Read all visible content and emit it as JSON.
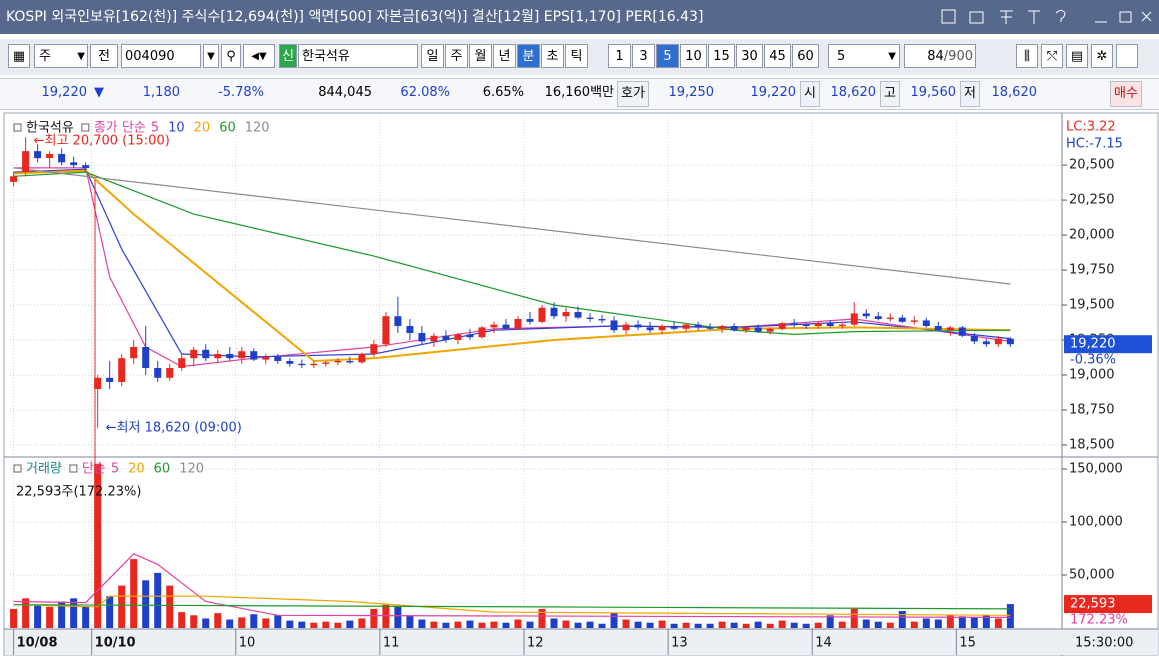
{
  "title_bar": {
    "text": "KOSPI 외국인보유[162(천)] 주식수[12,694(천)] 액면[500] 자본금[63(억)] 결산[12월] EPS[1,170] PER[16.43]"
  },
  "toolbar": {
    "type_select": "주",
    "prev": "전",
    "code": "004090",
    "stock_badge": "신",
    "stock_name": "한국석유",
    "periods": [
      "일",
      "주",
      "월",
      "년",
      "분",
      "초",
      "틱"
    ],
    "active_period_index": 4,
    "minutes": [
      "1",
      "3",
      "5",
      "10",
      "15",
      "30",
      "45",
      "60"
    ],
    "active_minute_index": 2,
    "interval": "5",
    "count": "84",
    "count_max": "/900"
  },
  "quote": {
    "price": "19,220",
    "arrow": "▼",
    "change": "1,180",
    "rate": "-5.78%",
    "volume": "844,045",
    "volume_ratio": "62.08%",
    "turnover": "6.65%",
    "amount": "16,160백만",
    "ask_label": "호가",
    "ask": "19,250",
    "bid": "19,220",
    "open_label": "시",
    "open": "18,620",
    "high_label": "고",
    "high": "19,560",
    "low_label": "저",
    "low": "18,620",
    "order_button": "매수"
  },
  "chart_data": [
    {
      "type": "candlestick",
      "name": "한국석유",
      "ma_label": "종가 단순",
      "up_color": "#e8281e",
      "down_color": "#1e40c8",
      "open": [
        20380,
        20450,
        20600,
        20550,
        20580,
        20520,
        20500,
        18900,
        18980,
        18950,
        19120,
        19200,
        19050,
        18980,
        19050,
        19120,
        19180,
        19120,
        19150,
        19120,
        19170,
        19110,
        19130,
        19100,
        19080,
        19070,
        19080,
        19090,
        19100,
        19090,
        19150,
        19220,
        19420,
        19350,
        19300,
        19240,
        19280,
        19250,
        19290,
        19270,
        19340,
        19360,
        19330,
        19400,
        19380,
        19480,
        19420,
        19450,
        19410,
        19400,
        19390,
        19320,
        19360,
        19340,
        19320,
        19350,
        19330,
        19360,
        19340,
        19330,
        19350,
        19320,
        19340,
        19310,
        19330,
        19370,
        19360,
        19350,
        19370,
        19350,
        19360,
        19440,
        19420,
        19400,
        19410,
        19380,
        19390,
        19350,
        19320,
        19340,
        19280,
        19240,
        19220,
        19260
      ],
      "high": [
        20450,
        20700,
        20650,
        20600,
        20620,
        20560,
        20520,
        19000,
        19100,
        19150,
        19250,
        19350,
        19100,
        19080,
        19150,
        19200,
        19220,
        19180,
        19200,
        19200,
        19190,
        19150,
        19150,
        19120,
        19110,
        19100,
        19100,
        19120,
        19130,
        19160,
        19250,
        19450,
        19560,
        19400,
        19350,
        19300,
        19320,
        19300,
        19330,
        19350,
        19380,
        19400,
        19420,
        19450,
        19500,
        19520,
        19480,
        19490,
        19440,
        19430,
        19420,
        19380,
        19390,
        19380,
        19360,
        19380,
        19370,
        19380,
        19370,
        19360,
        19370,
        19350,
        19360,
        19340,
        19380,
        19400,
        19370,
        19380,
        19390,
        19380,
        19520,
        19470,
        19450,
        19440,
        19430,
        19420,
        19410,
        19380,
        19350,
        19350,
        19300,
        19260,
        19280,
        19270
      ],
      "low": [
        20350,
        20420,
        20520,
        20480,
        20500,
        20480,
        20450,
        18620,
        18900,
        18920,
        19080,
        19000,
        18950,
        18960,
        19030,
        19060,
        19100,
        19090,
        19100,
        19080,
        19100,
        19080,
        19080,
        19060,
        19050,
        19050,
        19060,
        19070,
        19080,
        19080,
        19130,
        19200,
        19300,
        19250,
        19220,
        19200,
        19230,
        19220,
        19250,
        19260,
        19300,
        19320,
        19320,
        19360,
        19370,
        19400,
        19380,
        19400,
        19380,
        19370,
        19300,
        19290,
        19320,
        19300,
        19290,
        19320,
        19310,
        19320,
        19320,
        19300,
        19310,
        19300,
        19300,
        19290,
        19320,
        19340,
        19330,
        19330,
        19340,
        19330,
        19350,
        19400,
        19390,
        19380,
        19370,
        19360,
        19340,
        19310,
        19280,
        19270,
        19220,
        19200,
        19200,
        19200
      ],
      "close": [
        20420,
        20600,
        20550,
        20580,
        20520,
        20500,
        20480,
        18980,
        18950,
        19120,
        19200,
        19050,
        18980,
        19050,
        19120,
        19180,
        19120,
        19150,
        19120,
        19170,
        19110,
        19130,
        19100,
        19080,
        19070,
        19080,
        19090,
        19100,
        19090,
        19150,
        19220,
        19420,
        19350,
        19300,
        19240,
        19280,
        19250,
        19290,
        19270,
        19340,
        19360,
        19330,
        19400,
        19380,
        19480,
        19420,
        19450,
        19410,
        19400,
        19390,
        19320,
        19360,
        19340,
        19320,
        19350,
        19330,
        19360,
        19340,
        19330,
        19350,
        19320,
        19340,
        19310,
        19330,
        19370,
        19360,
        19350,
        19370,
        19350,
        19360,
        19440,
        19420,
        19400,
        19410,
        19380,
        19390,
        19350,
        19320,
        19340,
        19280,
        19240,
        19220,
        19260,
        19220
      ],
      "moving_averages": [
        {
          "name": "5",
          "color": "#e040a0",
          "x": [
            0,
            6,
            8,
            11,
            14,
            20,
            30,
            40,
            50,
            60,
            70,
            83
          ],
          "values": [
            20480,
            20480,
            19700,
            19200,
            19060,
            19120,
            19200,
            19330,
            19350,
            19340,
            19400,
            19240
          ]
        },
        {
          "name": "10",
          "color": "#2b3fd6",
          "x": [
            0,
            6,
            9,
            14,
            20,
            30,
            40,
            50,
            60,
            70,
            83
          ],
          "values": [
            20450,
            20470,
            19900,
            19150,
            19130,
            19150,
            19320,
            19350,
            19340,
            19380,
            19260
          ]
        },
        {
          "name": "20",
          "color": "#f0a500",
          "x": [
            0,
            6,
            10,
            25,
            30,
            45,
            60,
            70,
            83
          ],
          "values": [
            20440,
            20460,
            20150,
            19100,
            19120,
            19250,
            19330,
            19340,
            19320
          ]
        },
        {
          "name": "60",
          "color": "#1a9a2a",
          "x": [
            0,
            6,
            15,
            30,
            45,
            60,
            65,
            70,
            83
          ],
          "values": [
            20420,
            20450,
            20150,
            19850,
            19500,
            19320,
            19290,
            19310,
            19320
          ]
        },
        {
          "name": "120",
          "color": "#8c8c8c",
          "x": [
            0,
            83
          ],
          "values": [
            20480,
            19650
          ]
        }
      ],
      "xlim": [
        -0.3,
        87.3
      ],
      "ylim": [
        18428,
        20844
      ],
      "yticks": [
        {
          "value": 18500,
          "label": "18,500"
        },
        {
          "value": 18750,
          "label": "18,750"
        },
        {
          "value": 19000,
          "label": "19,000"
        },
        {
          "value": 19250,
          "label": "19,250"
        },
        {
          "value": 19500,
          "label": "19,500"
        },
        {
          "value": 19750,
          "label": "19,750"
        },
        {
          "value": 20000,
          "label": "20,000"
        },
        {
          "value": 20250,
          "label": "20,250"
        },
        {
          "value": 20500,
          "label": "20,500"
        }
      ],
      "grid": true,
      "annotations": [
        {
          "text": "←최고 20,700 (15:00)",
          "value": 20700,
          "color": "#e8281e"
        },
        {
          "text": "←최저 18,620 (09:00)",
          "value": 18620,
          "color": "#1e40c8"
        }
      ],
      "lc": "LC:3.22",
      "hc": "HC:-7.15",
      "current": {
        "value": 19220,
        "label": "19,220",
        "change": "-0.36%"
      }
    },
    {
      "type": "bar",
      "name": "거래량",
      "ma_label": "단순",
      "values": [
        18000,
        28000,
        22000,
        20000,
        25000,
        28000,
        20000,
        155000,
        30000,
        40000,
        65000,
        45000,
        52000,
        40000,
        15000,
        12000,
        9000,
        14000,
        8000,
        10000,
        13000,
        9000,
        12000,
        7000,
        6000,
        5000,
        6000,
        5000,
        7000,
        9000,
        18000,
        22000,
        20000,
        12000,
        8000,
        6000,
        5000,
        6000,
        7000,
        5000,
        6000,
        5000,
        8000,
        6000,
        18000,
        9000,
        7000,
        5000,
        6000,
        4000,
        14000,
        8000,
        6000,
        5000,
        7000,
        4000,
        5000,
        4000,
        4000,
        6000,
        5000,
        4000,
        6000,
        4000,
        7000,
        5000,
        4000,
        5000,
        12000,
        6000,
        18000,
        8000,
        6000,
        5000,
        16000,
        6000,
        9000,
        8000,
        12000,
        11000,
        10000,
        12000,
        9000,
        22593
      ],
      "moving_averages": [
        {
          "name": "5",
          "color": "#e040a0",
          "x": [
            0,
            6,
            10,
            12,
            16,
            22,
            83
          ],
          "values": [
            25000,
            24000,
            70000,
            60000,
            25000,
            12000,
            10000
          ]
        },
        {
          "name": "20",
          "color": "#f0a500",
          "x": [
            0,
            7,
            8,
            16,
            28,
            40,
            83
          ],
          "values": [
            22000,
            20000,
            30000,
            30000,
            25000,
            15000,
            12000
          ]
        },
        {
          "name": "60",
          "color": "#1a9a2a",
          "x": [
            0,
            83
          ],
          "values": [
            22000,
            18000
          ]
        },
        {
          "name": "120",
          "color": "#8c8c8c",
          "x": [],
          "values": []
        }
      ],
      "xlim": [
        -0.3,
        87.3
      ],
      "ylim": [
        0,
        158500
      ],
      "yticks": [
        {
          "value": 50000,
          "label": "50,000"
        },
        {
          "value": 100000,
          "label": "100,000"
        },
        {
          "value": 150000,
          "label": "150,000"
        }
      ],
      "xticks": [
        {
          "value": 0,
          "label": "10/08"
        },
        {
          "value": 6.5,
          "label": "10/10"
        },
        {
          "value": 18.5,
          "label": "10"
        },
        {
          "value": 30.5,
          "label": "11"
        },
        {
          "value": 42.5,
          "label": "12"
        },
        {
          "value": 54.5,
          "label": "13"
        },
        {
          "value": 66.5,
          "label": "14"
        },
        {
          "value": 78.5,
          "label": "15"
        }
      ],
      "summary": "22,593주(172.23%)",
      "current": {
        "value": 22593,
        "label": "22,593",
        "change": "172.23%"
      },
      "time": "15:30:00"
    }
  ]
}
